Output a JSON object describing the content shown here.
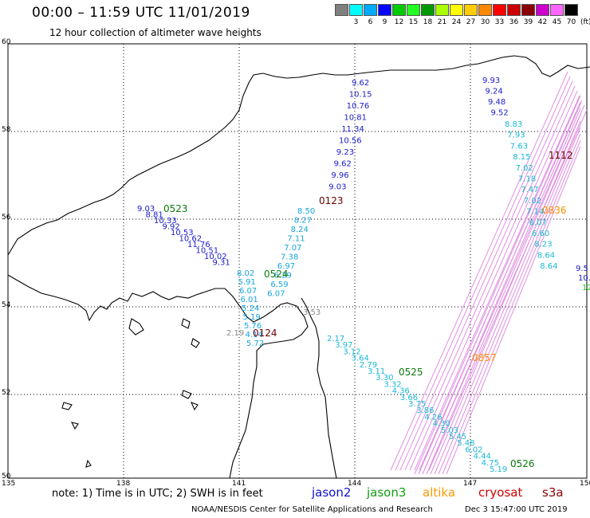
{
  "header": {
    "title": "00:00 – 11:59 UTC 11/01/2019",
    "subtitle": "12 hour collection of altimeter wave heights"
  },
  "legend": {
    "swatches": [
      {
        "color": "#808080",
        "label": ""
      },
      {
        "color": "#00ffff",
        "label": "3"
      },
      {
        "color": "#00aaff",
        "label": "6"
      },
      {
        "color": "#0000ff",
        "label": "9"
      },
      {
        "color": "#00cc00",
        "label": "12"
      },
      {
        "color": "#22ff22",
        "label": "15"
      },
      {
        "color": "#009900",
        "label": "18"
      },
      {
        "color": "#aaff00",
        "label": "21"
      },
      {
        "color": "#ffff00",
        "label": "24"
      },
      {
        "color": "#ffcc00",
        "label": "27"
      },
      {
        "color": "#ff8800",
        "label": "30"
      },
      {
        "color": "#ff0000",
        "label": "33"
      },
      {
        "color": "#cc0000",
        "label": "36"
      },
      {
        "color": "#880000",
        "label": "39"
      },
      {
        "color": "#cc00cc",
        "label": "42"
      },
      {
        "color": "#ff66ff",
        "label": "45"
      },
      {
        "color": "#000000",
        "label": "70"
      }
    ],
    "unit": "(ft)"
  },
  "axes": {
    "lat_ticks": [
      "60",
      "58",
      "56",
      "54",
      "52",
      "50"
    ],
    "lon_ticks": [
      "135",
      "138",
      "141",
      "144",
      "147",
      "150"
    ]
  },
  "tracks": {
    "j2_east": [
      "9.62",
      "10.15",
      "10.76",
      "10.81",
      "11.34",
      "10.56",
      "9.23",
      "9.62",
      "9.96",
      "9.03"
    ],
    "j2_east_cyan": [
      "8.50",
      "8.27",
      "8.24",
      "7.11",
      "7.07",
      "7.38",
      "6.97",
      "6.29",
      "6.59",
      "6.07"
    ],
    "j2_west": [
      "9.03",
      "8.81",
      "10.33",
      "9.92",
      "10.53",
      "10.62",
      "11.76",
      "10.51",
      "10.02",
      "9.31"
    ],
    "j2_west_cyan": [
      "8.02",
      "5.91",
      "6.07",
      "6.01",
      "5.24",
      "5.19",
      "5.76",
      "4.14",
      "5.72"
    ],
    "j3_se": [
      "2.17",
      "3.97",
      "3.12",
      "3.64",
      "2.79",
      "3.11",
      "3.30",
      "3.32",
      "4.36",
      "3.66",
      "3.75",
      "3.86",
      "4.26",
      "4.30",
      "5.03",
      "5.45",
      "5.48",
      "6.02",
      "4.44",
      "4.75",
      "5.19"
    ],
    "j3_misc": [
      "3.53",
      "2.19"
    ],
    "ne_blue": [
      "9.93",
      "9.24",
      "9.48",
      "9.52"
    ],
    "ne_cyan": [
      "8.83",
      "7.93",
      "7.63",
      "8.15",
      "7.02",
      "7.18",
      "7.47",
      "7.02",
      "7.14",
      "6.07",
      "6.60",
      "8.23",
      "8.64",
      "8.64"
    ],
    "ne_tail": [
      "9.5",
      "10."
    ],
    "ne_green": "12"
  },
  "times": {
    "j2_north": "0123",
    "j2_south": "0124",
    "j3_west": "0523",
    "j3_mid": "0524",
    "j3_se": "0525",
    "j3_s": "0526",
    "altika_a": "0857",
    "altika_b": "0836",
    "cryosat": "1112"
  },
  "footer": {
    "note": "note: 1) Time is in UTC; 2) SWH is in feet",
    "satellites": [
      {
        "name": "jason2",
        "color": "#1010d0"
      },
      {
        "name": "jason3",
        "color": "#10a010"
      },
      {
        "name": "altika",
        "color": "#ff9900"
      },
      {
        "name": "cryosat",
        "color": "#d00000"
      },
      {
        "name": "s3a",
        "color": "#880000"
      }
    ],
    "credit": "NOAA/NESDIS Center for Satellite Applications and Research",
    "timestamp": "Dec  3 15:47:00 UTC 2019"
  },
  "colors": {
    "jason2": "#1a1acc",
    "jason2_low": "#16a5dd",
    "jason3": "#19b8d6",
    "grey": "#8a8a8a",
    "s3a_track": "#e08ee0",
    "time_green": "#0a7a0a",
    "time_dark": "#6a0000",
    "time_orange": "#ff8c00"
  }
}
